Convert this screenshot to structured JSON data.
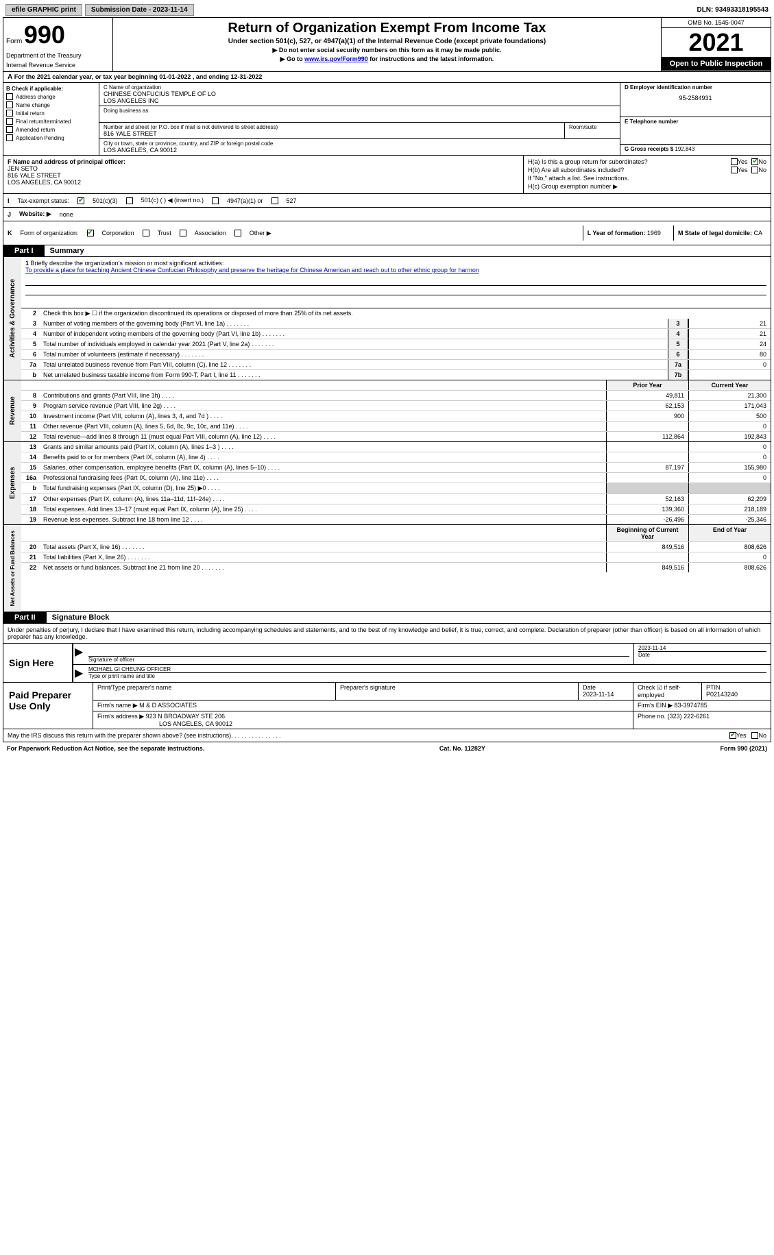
{
  "top": {
    "efile": "efile GRAPHIC print",
    "submission": "Submission Date - 2023-11-14",
    "dln": "DLN: 93493318195543"
  },
  "header": {
    "form_word": "Form",
    "form_num": "990",
    "title": "Return of Organization Exempt From Income Tax",
    "subtitle": "Under section 501(c), 527, or 4947(a)(1) of the Internal Revenue Code (except private foundations)",
    "note1": "▶ Do not enter social security numbers on this form as it may be made public.",
    "note2_pre": "▶ Go to ",
    "note2_link": "www.irs.gov/Form990",
    "note2_post": " for instructions and the latest information.",
    "omb": "OMB No. 1545-0047",
    "year": "2021",
    "inspection": "Open to Public Inspection",
    "dept": "Department of the Treasury",
    "irs": "Internal Revenue Service"
  },
  "row_a": {
    "label": "A",
    "text": "For the 2021 calendar year, or tax year beginning 01-01-2022   , and ending 12-31-2022"
  },
  "section_b": {
    "label": "B Check if applicable:",
    "checks": [
      "Address change",
      "Name change",
      "Initial return",
      "Final return/terminated",
      "Amended return",
      "Application Pending"
    ],
    "c_name_label": "C Name of organization",
    "c_name": "CHINESE CONFUCIUS TEMPLE OF LO\nLOS ANGELES INC",
    "dba_label": "Doing business as",
    "street_label": "Number and street (or P.O. box if mail is not delivered to street address)",
    "street": "816 YALE STREET",
    "room_label": "Room/suite",
    "city_label": "City or town, state or province, country, and ZIP or foreign postal code",
    "city": "LOS ANGELES, CA  90012",
    "d_label": "D Employer identification number",
    "d_val": "95-2584931",
    "e_label": "E Telephone number",
    "g_label": "G Gross receipts $",
    "g_val": "192,843"
  },
  "section_f": {
    "f_label": "F Name and address of principal officer:",
    "f_name": "JEN SETO",
    "f_addr1": "816 YALE STREET",
    "f_addr2": "LOS ANGELES, CA  90012",
    "ha_label": "H(a)  Is this a group return for subordinates?",
    "hb_label": "H(b)  Are all subordinates included?",
    "hb_note": "If \"No,\" attach a list. See instructions.",
    "hc_label": "H(c)  Group exemption number ▶",
    "yes": "Yes",
    "no": "No",
    "ha_answer": "no"
  },
  "row_i": {
    "label": "I",
    "text": "Tax-exempt status:",
    "opt1": "501(c)(3)",
    "opt2": "501(c) (  ) ◀ (insert no.)",
    "opt3": "4947(a)(1) or",
    "opt4": "527",
    "checked": "501c3"
  },
  "row_j": {
    "label": "J",
    "text": "Website: ▶",
    "val": "none"
  },
  "row_k": {
    "label": "K",
    "text": "Form of organization:",
    "opts": [
      "Corporation",
      "Trust",
      "Association",
      "Other ▶"
    ],
    "checked_idx": 0,
    "l_label": "L Year of formation:",
    "l_val": "1969",
    "m_label": "M State of legal domicile:",
    "m_val": "CA"
  },
  "part1": {
    "tab": "Part I",
    "title": "Summary"
  },
  "activities": {
    "side": "Activities & Governance",
    "line1_num": "1",
    "line1_text": "Briefly describe the organization's mission or most significant activities:",
    "mission": "To provide a place for teaching Ancient Chinese Confucian Philosophy and preserve the heritage for Chinese American and reach out to other ethnic group for harmon",
    "line2_num": "2",
    "line2_text": "Check this box ▶ ☐ if the organization discontinued its operations or disposed of more than 25% of its net assets.",
    "rows": [
      {
        "n": "3",
        "d": "Number of voting members of the governing body (Part VI, line 1a)",
        "bn": "3",
        "v": "21"
      },
      {
        "n": "4",
        "d": "Number of independent voting members of the governing body (Part VI, line 1b)",
        "bn": "4",
        "v": "21"
      },
      {
        "n": "5",
        "d": "Total number of individuals employed in calendar year 2021 (Part V, line 2a)",
        "bn": "5",
        "v": "24"
      },
      {
        "n": "6",
        "d": "Total number of volunteers (estimate if necessary)",
        "bn": "6",
        "v": "80"
      },
      {
        "n": "7a",
        "d": "Total unrelated business revenue from Part VIII, column (C), line 12",
        "bn": "7a",
        "v": "0"
      },
      {
        "n": "b",
        "d": "Net unrelated business taxable income from Form 990-T, Part I, line 11",
        "bn": "7b",
        "v": ""
      }
    ]
  },
  "revenue": {
    "side": "Revenue",
    "hdr_prior": "Prior Year",
    "hdr_curr": "Current Year",
    "rows": [
      {
        "n": "8",
        "d": "Contributions and grants (Part VIII, line 1h)",
        "p": "49,811",
        "c": "21,300"
      },
      {
        "n": "9",
        "d": "Program service revenue (Part VIII, line 2g)",
        "p": "62,153",
        "c": "171,043"
      },
      {
        "n": "10",
        "d": "Investment income (Part VIII, column (A), lines 3, 4, and 7d )",
        "p": "900",
        "c": "500"
      },
      {
        "n": "11",
        "d": "Other revenue (Part VIII, column (A), lines 5, 6d, 8c, 9c, 10c, and 11e)",
        "p": "",
        "c": "0"
      },
      {
        "n": "12",
        "d": "Total revenue—add lines 8 through 11 (must equal Part VIII, column (A), line 12)",
        "p": "112,864",
        "c": "192,843"
      }
    ]
  },
  "expenses": {
    "side": "Expenses",
    "rows": [
      {
        "n": "13",
        "d": "Grants and similar amounts paid (Part IX, column (A), lines 1–3 )",
        "p": "",
        "c": "0"
      },
      {
        "n": "14",
        "d": "Benefits paid to or for members (Part IX, column (A), line 4)",
        "p": "",
        "c": "0"
      },
      {
        "n": "15",
        "d": "Salaries, other compensation, employee benefits (Part IX, column (A), lines 5–10)",
        "p": "87,197",
        "c": "155,980"
      },
      {
        "n": "16a",
        "d": "Professional fundraising fees (Part IX, column (A), line 11e)",
        "p": "",
        "c": "0"
      },
      {
        "n": "b",
        "d": "Total fundraising expenses (Part IX, column (D), line 25) ▶0",
        "p": "shaded",
        "c": "shaded"
      },
      {
        "n": "17",
        "d": "Other expenses (Part IX, column (A), lines 11a–11d, 11f–24e)",
        "p": "52,163",
        "c": "62,209"
      },
      {
        "n": "18",
        "d": "Total expenses. Add lines 13–17 (must equal Part IX, column (A), line 25)",
        "p": "139,360",
        "c": "218,189"
      },
      {
        "n": "19",
        "d": "Revenue less expenses. Subtract line 18 from line 12",
        "p": "-26,496",
        "c": "-25,346"
      }
    ]
  },
  "netassets": {
    "side": "Net Assets or Fund Balances",
    "hdr_prior": "Beginning of Current Year",
    "hdr_curr": "End of Year",
    "rows": [
      {
        "n": "20",
        "d": "Total assets (Part X, line 16)",
        "p": "849,516",
        "c": "808,626"
      },
      {
        "n": "21",
        "d": "Total liabilities (Part X, line 26)",
        "p": "",
        "c": "0"
      },
      {
        "n": "22",
        "d": "Net assets or fund balances. Subtract line 21 from line 20",
        "p": "849,516",
        "c": "808,626"
      }
    ]
  },
  "part2": {
    "tab": "Part II",
    "title": "Signature Block",
    "declaration": "Under penalties of perjury, I declare that I have examined this return, including accompanying schedules and statements, and to the best of my knowledge and belief, it is true, correct, and complete. Declaration of preparer (other than officer) is based on all information of which preparer has any knowledge."
  },
  "sign": {
    "label": "Sign Here",
    "sig_officer_label": "Signature of officer",
    "date_val": "2023-11-14",
    "date_label": "Date",
    "name": "MCIHAEL GI CHEUNG  OFFICER",
    "name_label": "Type or print name and title"
  },
  "prep": {
    "label": "Paid Preparer Use Only",
    "r1": {
      "c1_label": "Print/Type preparer's name",
      "c2_label": "Preparer's signature",
      "c3_label": "Date",
      "c3_val": "2023-11-14",
      "c4_label": "Check ☑ if self-employed",
      "c5_label": "PTIN",
      "c5_val": "P02143240"
    },
    "r2": {
      "firm_label": "Firm's name    ▶",
      "firm_val": "M & D ASSOCIATES",
      "ein_label": "Firm's EIN ▶",
      "ein_val": "83-3974785"
    },
    "r3": {
      "addr_label": "Firm's address ▶",
      "addr_val1": "923 N BROADWAY STE 206",
      "addr_val2": "LOS ANGELES, CA  90012",
      "phone_label": "Phone no.",
      "phone_val": "(323) 222-6261"
    }
  },
  "bottom": {
    "text": "May the IRS discuss this return with the preparer shown above? (see instructions)",
    "yes": "Yes",
    "no": "No",
    "checked": "yes"
  },
  "footer": {
    "left": "For Paperwork Reduction Act Notice, see the separate instructions.",
    "center": "Cat. No. 11282Y",
    "right": "Form 990 (2021)"
  }
}
